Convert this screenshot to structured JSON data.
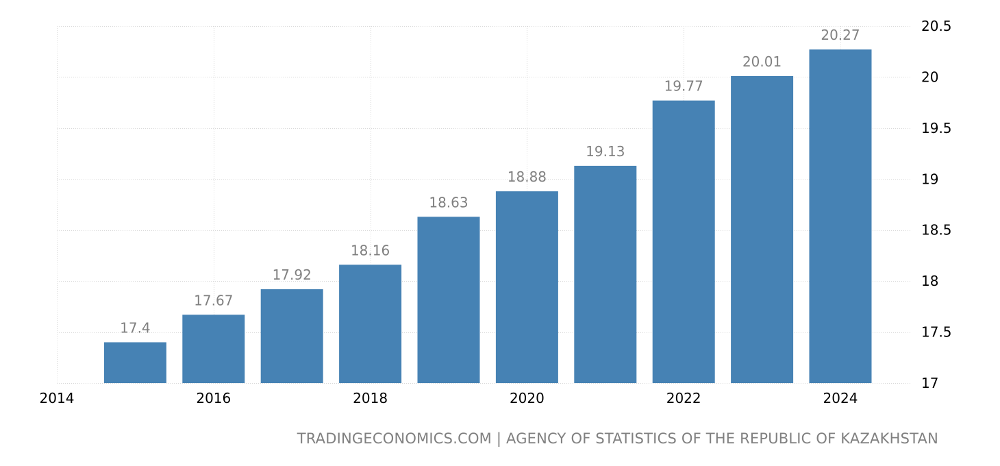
{
  "chart_data": {
    "type": "bar",
    "categories": [
      "2015",
      "2016",
      "2017",
      "2018",
      "2019",
      "2020",
      "2021",
      "2022",
      "2023",
      "2024"
    ],
    "values": [
      17.4,
      17.67,
      17.92,
      18.16,
      18.63,
      18.88,
      19.13,
      19.77,
      20.01,
      20.27
    ],
    "data_labels": [
      "17.4",
      "17.67",
      "17.92",
      "18.16",
      "18.63",
      "18.88",
      "19.13",
      "19.77",
      "20.01",
      "20.27"
    ],
    "x_tick_labels": [
      "2014",
      "2016",
      "2018",
      "2020",
      "2022",
      "2024"
    ],
    "x_ticks": [
      2014,
      2016,
      2018,
      2020,
      2022,
      2024
    ],
    "y_tick_labels": [
      "20.5",
      "20",
      "19.5",
      "19",
      "18.5",
      "18",
      "17.5",
      "17"
    ],
    "y_ticks": [
      20.5,
      20,
      19.5,
      19,
      18.5,
      18,
      17.5,
      17
    ],
    "ylim": [
      17,
      20.5
    ],
    "xlim": [
      2014,
      2024.5
    ],
    "y_axis_position": "right",
    "grid": true,
    "bar_color": "#4682b4",
    "label_color": "#808080",
    "title": "",
    "xlabel": "",
    "ylabel": ""
  },
  "footer": {
    "source": "TRADINGECONOMICS.COM | AGENCY OF STATISTICS OF THE REPUBLIC OF KAZAKHSTAN"
  }
}
